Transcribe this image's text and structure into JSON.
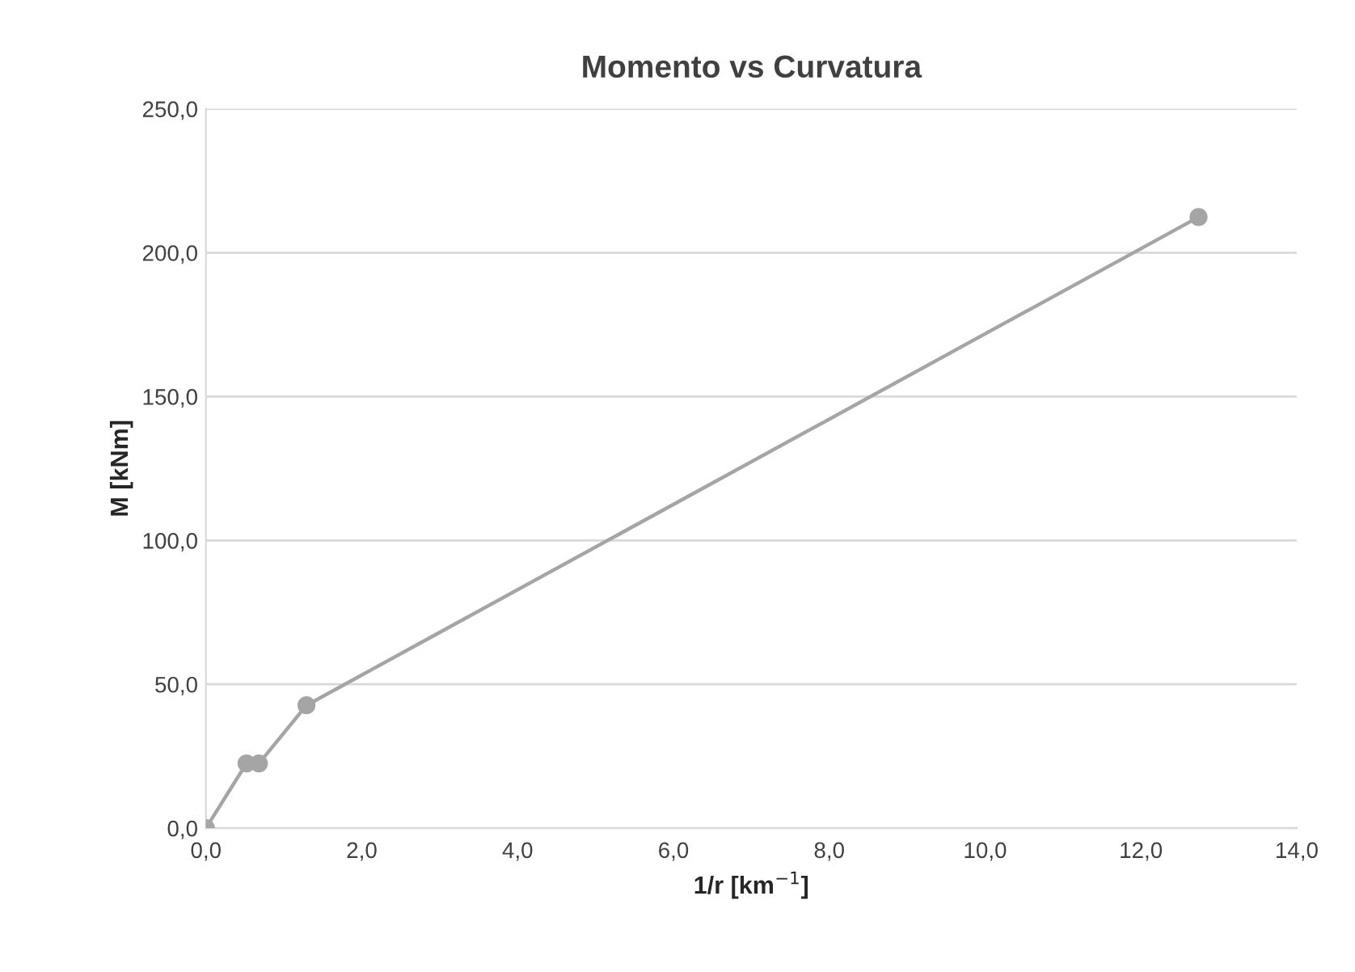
{
  "chart_data": {
    "type": "line",
    "title": "Momento vs Curvatura",
    "xlabel": "1/r [km$^{−1}$]",
    "ylabel": "M [kNm]",
    "series": [
      {
        "x": [
          0.0,
          0.52,
          0.68,
          1.29,
          12.74
        ],
        "values": [
          0.0,
          22.5,
          22.5,
          42.7,
          212.4
        ],
        "color": "#a5a5a5"
      }
    ],
    "xlim": [
      0,
      14
    ],
    "xticks": [
      {
        "value": 0,
        "label": "0,0"
      },
      {
        "value": 2,
        "label": "2,0"
      },
      {
        "value": 4,
        "label": "4,0"
      },
      {
        "value": 6,
        "label": "6,0"
      },
      {
        "value": 8,
        "label": "8,0"
      },
      {
        "value": 10,
        "label": "10,0"
      },
      {
        "value": 12,
        "label": "12,0"
      },
      {
        "value": 14,
        "label": "14,0"
      }
    ],
    "ylim": [
      0,
      250
    ],
    "yticks": [
      {
        "value": 0,
        "label": "0,0"
      },
      {
        "value": 50,
        "label": "50,0"
      },
      {
        "value": 100,
        "label": "100,0"
      },
      {
        "value": 150,
        "label": "150,0"
      },
      {
        "value": 200,
        "label": "200,0"
      },
      {
        "value": 250,
        "label": "250,0"
      }
    ],
    "grid": "y",
    "marker": "circle",
    "line_style": "solid"
  }
}
